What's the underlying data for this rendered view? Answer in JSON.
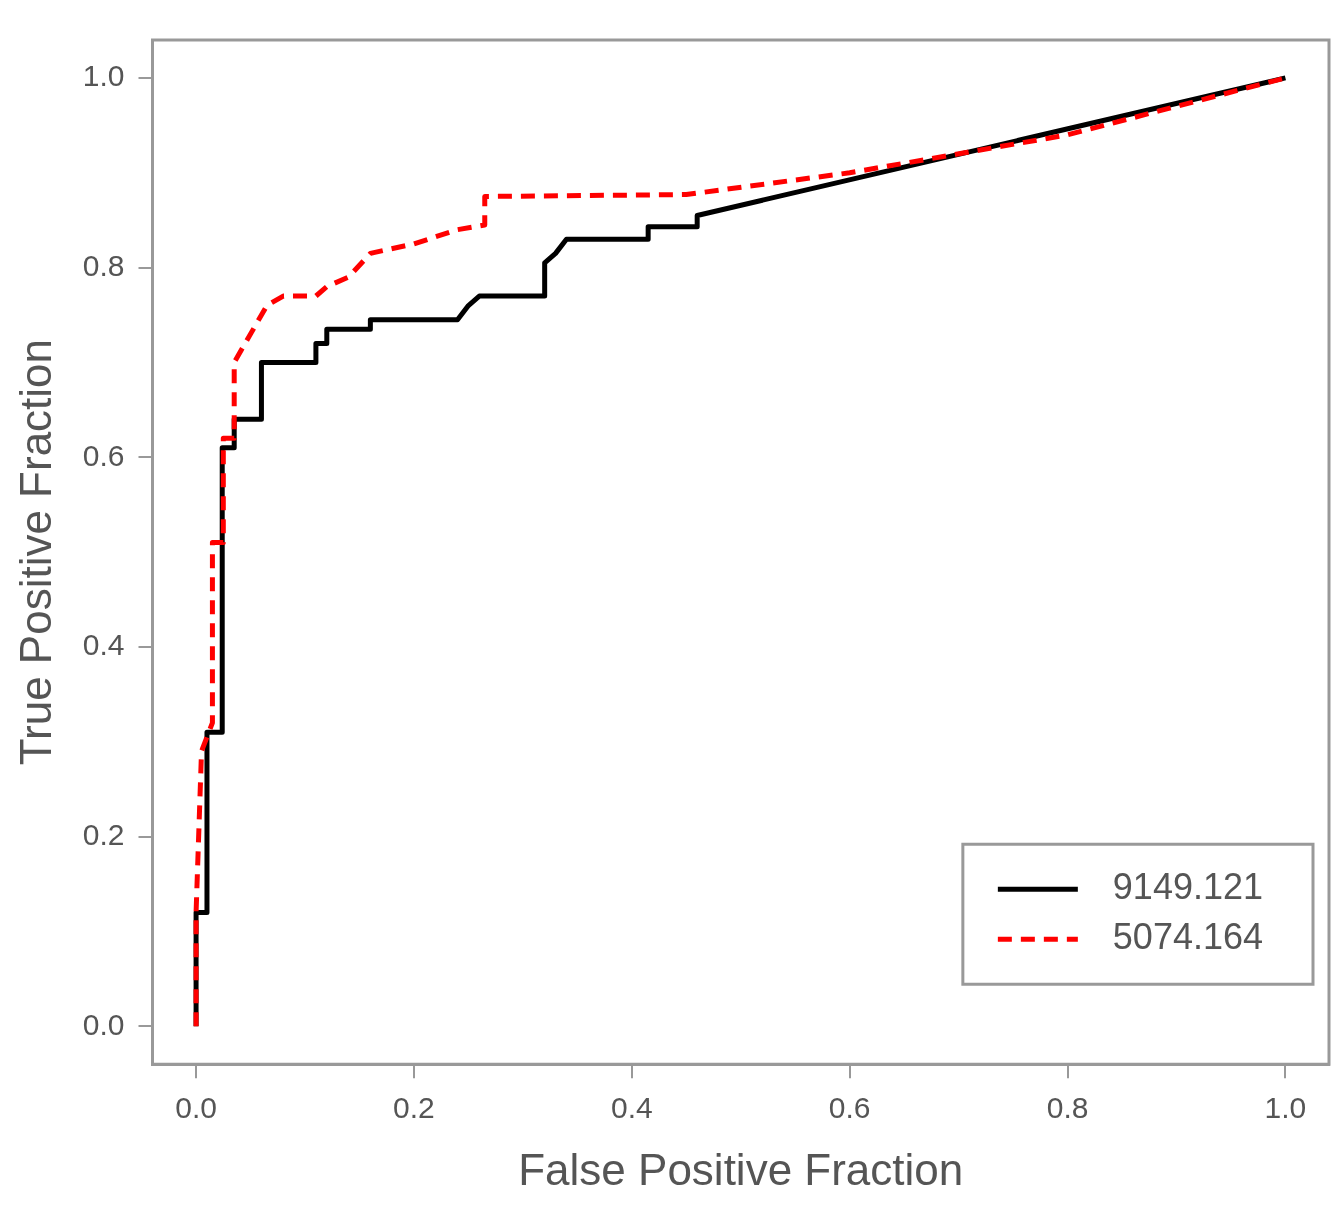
{
  "chart_data": {
    "type": "line",
    "xlabel": "False Positive Fraction",
    "ylabel": "True Positive Fraction",
    "xlim": [
      -0.04,
      1.04
    ],
    "ylim": [
      -0.04,
      1.04
    ],
    "xticks": [
      {
        "value": 0,
        "label": "0.0"
      },
      0.2,
      0.4,
      0.6,
      0.8,
      {
        "value": 1,
        "label": "1.0"
      }
    ],
    "yticks": [
      {
        "value": 0,
        "label": "0.0"
      },
      0.2,
      0.4,
      0.6,
      0.8,
      {
        "value": 1,
        "label": "1.0"
      }
    ],
    "grid": false,
    "legend": "bottom right",
    "marker": "none",
    "series": [
      {
        "name": "9149.121",
        "color": "#000000",
        "line_style": "solid",
        "x": [
          0,
          0,
          0.01,
          0.01,
          0.024,
          0.024,
          0.035,
          0.035,
          0.06,
          0.06,
          0.11,
          0.11,
          0.12,
          0.12,
          0.16,
          0.16,
          0.24,
          0.25,
          0.26,
          0.32,
          0.32,
          0.33,
          0.34,
          0.415,
          0.415,
          0.46,
          0.46,
          1
        ],
        "values": [
          0,
          0.12,
          0.12,
          0.31,
          0.31,
          0.61,
          0.61,
          0.64,
          0.64,
          0.7,
          0.7,
          0.72,
          0.72,
          0.735,
          0.735,
          0.745,
          0.745,
          0.76,
          0.77,
          0.77,
          0.805,
          0.815,
          0.83,
          0.83,
          0.843,
          0.843,
          0.855,
          1
        ]
      },
      {
        "name": "5074.164",
        "color": "#ff0000",
        "line_style": "dashed",
        "x": [
          0,
          0,
          0.005,
          0.015,
          0.015,
          0.025,
          0.025,
          0.035,
          0.035,
          0.045,
          0.065,
          0.08,
          0.11,
          0.12,
          0.14,
          0.16,
          0.2,
          0.24,
          0.265,
          0.265,
          0.45,
          0.6,
          0.8,
          1
        ],
        "values": [
          0,
          0.12,
          0.29,
          0.32,
          0.51,
          0.51,
          0.62,
          0.62,
          0.7,
          0.72,
          0.76,
          0.77,
          0.77,
          0.78,
          0.79,
          0.815,
          0.825,
          0.84,
          0.845,
          0.875,
          0.877,
          0.9,
          0.94,
          1
        ]
      }
    ]
  }
}
